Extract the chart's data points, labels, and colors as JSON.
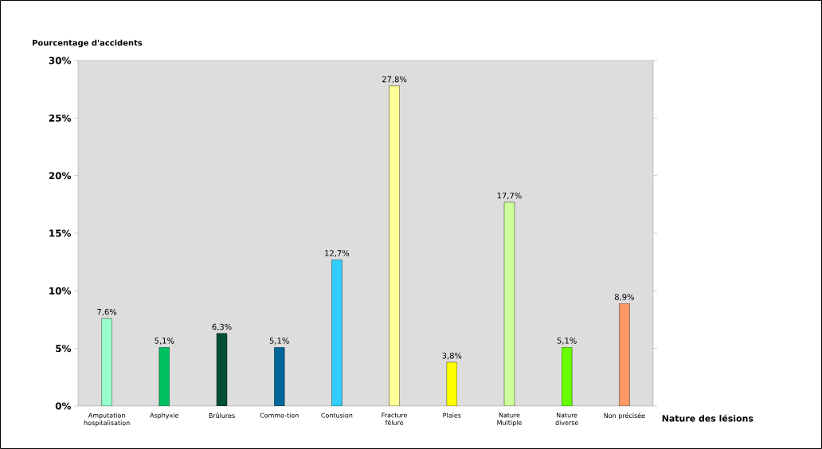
{
  "chart_data": {
    "type": "bar",
    "xlabel": "Nature des lésions",
    "ylabel": "Pourcentage d'accidents",
    "categories": [
      "Amputation hospitalisation",
      "Asphyxie",
      "Brûlures",
      "Commo-tion",
      "Contusion",
      "Fracture fêlure",
      "Plaies",
      "Nature Multiple",
      "Nature diverse",
      "Non précisée"
    ],
    "values": [
      7.6,
      5.1,
      6.3,
      5.1,
      12.7,
      27.8,
      3.8,
      17.7,
      5.1,
      8.9
    ],
    "value_labels": [
      "7,6%",
      "5,1%",
      "6,3%",
      "5,1%",
      "12,7%",
      "27,8%",
      "3,8%",
      "17,7%",
      "5,1%",
      "8,9%"
    ],
    "colors": [
      "#99ffcc",
      "#00c060",
      "#004d33",
      "#006699",
      "#33ccff",
      "#ffff99",
      "#ffff00",
      "#ccff99",
      "#66ff00",
      "#ff9966"
    ],
    "ylim": [
      0,
      30
    ],
    "yticks": [
      {
        "value": 0,
        "label": "0%"
      },
      {
        "value": 5,
        "label": "5%"
      },
      {
        "value": 10,
        "label": "10%"
      },
      {
        "value": 15,
        "label": "15%"
      },
      {
        "value": 20,
        "label": "20%"
      },
      {
        "value": 25,
        "label": "25%"
      },
      {
        "value": 30,
        "label": "30%"
      }
    ],
    "grid": false
  }
}
